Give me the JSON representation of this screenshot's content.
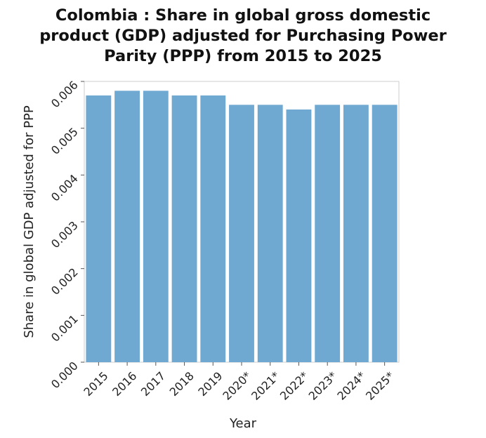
{
  "chart_data": {
    "type": "bar",
    "title_lines": [
      "Colombia : Share in global gross domestic",
      "product (GDP) adjusted for Purchasing Power",
      "Parity (PPP) from 2015 to 2025"
    ],
    "xlabel": "Year",
    "ylabel": "Share in global GDP adjusted for PPP",
    "categories": [
      "2015",
      "2016",
      "2017",
      "2018",
      "2019",
      "2020*",
      "2021*",
      "2022*",
      "2023*",
      "2024*",
      "2025*"
    ],
    "values": [
      0.0057,
      0.0058,
      0.0058,
      0.0057,
      0.0057,
      0.0055,
      0.0055,
      0.0054,
      0.0055,
      0.0055,
      0.0055
    ],
    "ylim": [
      0,
      0.006
    ],
    "yticks": [
      "0.000",
      "0.001",
      "0.002",
      "0.003",
      "0.004",
      "0.005",
      "0.006"
    ],
    "grid": false,
    "legend": "none",
    "bar_color": "#6fa8d1"
  }
}
